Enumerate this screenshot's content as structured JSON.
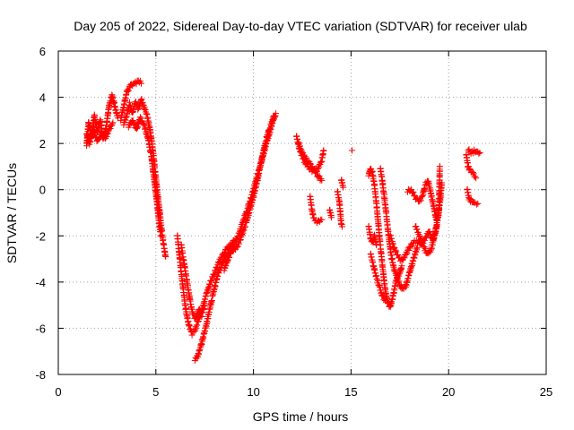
{
  "chart_data": {
    "type": "scatter",
    "title": "Day 205 of 2022, Sidereal Day-to-day VTEC variation (SDTVAR) for receiver ulab",
    "xlabel": "GPS time / hours",
    "ylabel": "SDTVAR / TECUs",
    "xlim": [
      0,
      25
    ],
    "ylim": [
      -8,
      6
    ],
    "xticks": [
      0,
      5,
      10,
      15,
      20,
      25
    ],
    "yticks": [
      -8,
      -6,
      -4,
      -2,
      0,
      2,
      4,
      6
    ],
    "grid": true,
    "marker": "+",
    "color": "#ff0000",
    "series": [
      {
        "segments": [
          [
            [
              1.45,
              1.9
            ],
            [
              1.55,
              2.9
            ],
            [
              1.7,
              2.3
            ],
            [
              1.85,
              3.2
            ],
            [
              2.0,
              2.5
            ],
            [
              2.15,
              3.0
            ],
            [
              2.3,
              2.2
            ],
            [
              2.45,
              2.7
            ],
            [
              2.6,
              3.6
            ],
            [
              2.75,
              4.1
            ],
            [
              2.9,
              3.6
            ],
            [
              3.05,
              3.1
            ]
          ],
          [
            [
              1.45,
              2.4
            ],
            [
              1.6,
              2.0
            ],
            [
              1.8,
              2.6
            ],
            [
              2.0,
              2.1
            ],
            [
              2.2,
              2.4
            ],
            [
              2.4,
              2.2
            ],
            [
              2.6,
              2.6
            ],
            [
              2.8,
              2.9
            ]
          ],
          [
            [
              3.2,
              3.0
            ],
            [
              3.35,
              3.6
            ],
            [
              3.5,
              4.2
            ],
            [
              3.7,
              4.5
            ],
            [
              3.9,
              4.6
            ],
            [
              4.1,
              4.7
            ],
            [
              4.25,
              4.6
            ]
          ],
          [
            [
              3.35,
              2.8
            ],
            [
              3.5,
              3.2
            ],
            [
              3.65,
              3.7
            ],
            [
              3.8,
              3.3
            ],
            [
              3.95,
              3.8
            ],
            [
              4.1,
              3.5
            ],
            [
              4.25,
              3.9
            ],
            [
              4.4,
              3.6
            ],
            [
              4.55,
              3.2
            ],
            [
              4.7,
              2.6
            ],
            [
              4.8,
              2.0
            ],
            [
              4.9,
              1.3
            ],
            [
              5.0,
              0.5
            ],
            [
              5.1,
              -0.3
            ],
            [
              5.2,
              -1.0
            ],
            [
              5.3,
              -1.8
            ],
            [
              5.4,
              -2.4
            ],
            [
              5.5,
              -2.9
            ]
          ],
          [
            [
              3.6,
              2.7
            ],
            [
              3.8,
              3.0
            ],
            [
              4.0,
              2.6
            ],
            [
              4.2,
              3.1
            ],
            [
              4.4,
              2.8
            ],
            [
              4.6,
              2.2
            ],
            [
              4.75,
              1.6
            ],
            [
              4.85,
              0.9
            ],
            [
              4.95,
              0.2
            ],
            [
              5.05,
              -0.5
            ],
            [
              5.15,
              -1.3
            ],
            [
              5.25,
              -2.0
            ]
          ],
          [
            [
              6.1,
              -2.0
            ],
            [
              6.2,
              -2.8
            ],
            [
              6.3,
              -3.6
            ],
            [
              6.4,
              -4.3
            ],
            [
              6.5,
              -5.0
            ],
            [
              6.6,
              -5.5
            ],
            [
              6.7,
              -5.9
            ],
            [
              6.85,
              -6.2
            ],
            [
              7.0,
              -6.1
            ],
            [
              7.2,
              -5.6
            ],
            [
              7.4,
              -5.1
            ],
            [
              7.6,
              -4.5
            ],
            [
              7.8,
              -4.0
            ],
            [
              8.0,
              -3.6
            ],
            [
              8.2,
              -3.2
            ],
            [
              8.4,
              -2.9
            ],
            [
              8.6,
              -2.6
            ],
            [
              8.8,
              -2.4
            ],
            [
              9.0,
              -2.2
            ]
          ],
          [
            [
              6.3,
              -2.4
            ],
            [
              6.45,
              -3.2
            ],
            [
              6.6,
              -4.0
            ],
            [
              6.75,
              -4.8
            ],
            [
              6.9,
              -5.4
            ],
            [
              7.05,
              -5.6
            ],
            [
              7.2,
              -5.2
            ],
            [
              7.35,
              -5.4
            ],
            [
              7.5,
              -5.0
            ]
          ],
          [
            [
              7.0,
              -7.4
            ],
            [
              7.15,
              -7.2
            ],
            [
              7.3,
              -6.8
            ],
            [
              7.45,
              -6.3
            ],
            [
              7.6,
              -5.8
            ],
            [
              7.75,
              -5.2
            ],
            [
              7.9,
              -4.6
            ],
            [
              8.05,
              -4.1
            ],
            [
              8.2,
              -3.6
            ],
            [
              8.4,
              -3.2
            ],
            [
              8.6,
              -2.9
            ],
            [
              8.8,
              -2.7
            ],
            [
              9.0,
              -2.6
            ],
            [
              9.2,
              -2.4
            ],
            [
              9.4,
              -2.0
            ],
            [
              9.6,
              -1.5
            ],
            [
              9.8,
              -0.9
            ],
            [
              10.0,
              -0.3
            ],
            [
              10.2,
              0.4
            ],
            [
              10.4,
              1.2
            ],
            [
              10.6,
              2.0
            ],
            [
              10.8,
              2.6
            ],
            [
              11.0,
              3.0
            ],
            [
              11.15,
              3.3
            ]
          ],
          [
            [
              8.5,
              -3.5
            ],
            [
              8.7,
              -3.0
            ],
            [
              8.9,
              -2.6
            ],
            [
              9.1,
              -2.2
            ],
            [
              9.3,
              -1.8
            ],
            [
              9.5,
              -1.3
            ],
            [
              9.7,
              -0.8
            ],
            [
              9.9,
              -0.3
            ],
            [
              10.1,
              0.3
            ],
            [
              10.3,
              0.9
            ],
            [
              10.5,
              1.5
            ],
            [
              10.7,
              2.1
            ],
            [
              10.9,
              2.7
            ],
            [
              11.05,
              3.2
            ]
          ],
          [
            [
              12.2,
              2.3
            ],
            [
              12.35,
              1.8
            ],
            [
              12.5,
              1.4
            ],
            [
              12.7,
              1.1
            ],
            [
              12.9,
              0.9
            ],
            [
              13.1,
              0.8
            ],
            [
              13.3,
              0.9
            ],
            [
              13.5,
              1.3
            ],
            [
              13.6,
              1.7
            ]
          ],
          [
            [
              12.3,
              2.0
            ],
            [
              12.5,
              1.6
            ],
            [
              12.7,
              1.3
            ],
            [
              12.9,
              1.1
            ],
            [
              13.1,
              0.9
            ],
            [
              13.3,
              0.6
            ],
            [
              13.5,
              0.4
            ]
          ],
          [
            [
              12.9,
              -0.3
            ],
            [
              13.0,
              -0.9
            ],
            [
              13.1,
              -1.3
            ],
            [
              13.3,
              -1.4
            ],
            [
              13.5,
              -1.3
            ]
          ],
          [
            [
              13.9,
              -0.9
            ],
            [
              14.0,
              -1.2
            ]
          ],
          [
            [
              14.3,
              -0.1
            ],
            [
              14.4,
              -0.5
            ],
            [
              14.45,
              -1.0
            ],
            [
              14.5,
              -1.5
            ],
            [
              14.55,
              -1.6
            ]
          ],
          [
            [
              14.5,
              0.4
            ],
            [
              14.6,
              0.1
            ]
          ],
          [
            [
              15.05,
              1.7
            ]
          ],
          [
            [
              15.9,
              -1.6
            ],
            [
              16.0,
              -2.1
            ],
            [
              16.1,
              -2.3
            ],
            [
              16.2,
              -2.0
            ],
            [
              16.3,
              -2.4
            ]
          ],
          [
            [
              15.9,
              0.6
            ],
            [
              16.0,
              0.9
            ],
            [
              16.1,
              0.7
            ],
            [
              16.2,
              0.2
            ],
            [
              16.3,
              -0.6
            ],
            [
              16.4,
              -1.5
            ],
            [
              16.5,
              -2.4
            ],
            [
              16.6,
              -3.2
            ],
            [
              16.7,
              -4.0
            ],
            [
              16.8,
              -4.6
            ],
            [
              16.9,
              -4.9
            ],
            [
              17.0,
              -5.1
            ],
            [
              17.1,
              -4.8
            ],
            [
              17.2,
              -4.4
            ],
            [
              17.3,
              -4.0
            ],
            [
              17.4,
              -3.8
            ],
            [
              17.5,
              -3.6
            ],
            [
              17.6,
              -3.3
            ]
          ],
          [
            [
              16.5,
              0.9
            ],
            [
              16.6,
              0.4
            ],
            [
              16.7,
              -0.3
            ],
            [
              16.8,
              -1.0
            ],
            [
              16.9,
              -1.8
            ],
            [
              17.0,
              -2.5
            ],
            [
              17.1,
              -3.0
            ],
            [
              17.2,
              -3.4
            ],
            [
              17.4,
              -3.9
            ],
            [
              17.6,
              -4.3
            ],
            [
              17.8,
              -4.2
            ],
            [
              18.0,
              -3.6
            ],
            [
              18.2,
              -3.0
            ],
            [
              18.4,
              -2.5
            ]
          ],
          [
            [
              16.0,
              -2.8
            ],
            [
              16.15,
              -3.3
            ],
            [
              16.3,
              -3.8
            ],
            [
              16.45,
              -4.2
            ],
            [
              16.6,
              -4.6
            ],
            [
              16.75,
              -4.8
            ]
          ],
          [
            [
              17.0,
              -2.0
            ],
            [
              17.2,
              -2.5
            ],
            [
              17.4,
              -2.9
            ],
            [
              17.6,
              -3.1
            ],
            [
              17.8,
              -2.8
            ],
            [
              18.0,
              -2.5
            ],
            [
              18.2,
              -2.3
            ],
            [
              18.4,
              -2.2
            ],
            [
              18.6,
              -2.4
            ],
            [
              18.8,
              -2.1
            ],
            [
              19.0,
              -1.8
            ],
            [
              19.2,
              -2.2
            ],
            [
              19.4,
              -1.6
            ]
          ],
          [
            [
              17.9,
              -0.1
            ],
            [
              18.05,
              0.0
            ],
            [
              18.2,
              -0.2
            ],
            [
              18.35,
              -0.4
            ],
            [
              18.5,
              -0.5
            ],
            [
              18.65,
              -0.3
            ],
            [
              18.8,
              0.2
            ],
            [
              18.95,
              0.4
            ],
            [
              19.1,
              -0.2
            ],
            [
              19.25,
              -0.8
            ],
            [
              19.4,
              -1.4
            ],
            [
              19.55,
              -0.6
            ],
            [
              19.65,
              0.3
            ]
          ],
          [
            [
              18.3,
              -1.6
            ],
            [
              18.5,
              -2.0
            ],
            [
              18.7,
              -2.4
            ],
            [
              18.9,
              -2.8
            ],
            [
              19.1,
              -2.6
            ],
            [
              19.3,
              -1.9
            ],
            [
              19.5,
              -1.0
            ],
            [
              19.55,
              1.0
            ]
          ],
          [
            [
              20.9,
              1.5
            ],
            [
              21.0,
              1.0
            ],
            [
              21.1,
              0.8
            ],
            [
              21.25,
              0.7
            ],
            [
              21.4,
              0.5
            ]
          ],
          [
            [
              21.0,
              1.7
            ],
            [
              21.15,
              1.6
            ],
            [
              21.3,
              1.65
            ],
            [
              21.45,
              1.6
            ],
            [
              21.6,
              1.6
            ]
          ],
          [
            [
              20.95,
              0.0
            ],
            [
              21.05,
              -0.4
            ],
            [
              21.15,
              -0.5
            ],
            [
              21.3,
              -0.6
            ],
            [
              21.5,
              -0.6
            ]
          ]
        ]
      }
    ]
  }
}
